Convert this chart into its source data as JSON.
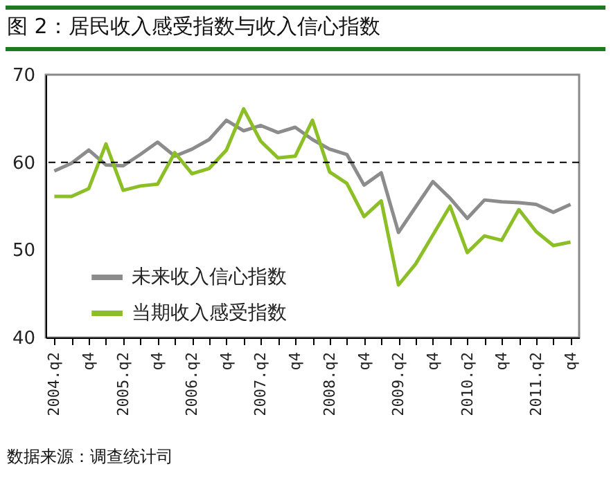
{
  "chart_data": {
    "type": "line",
    "title": "图 2：居民收入感受指数与收入信心指数",
    "categories": [
      "2004.q2",
      null,
      "q4",
      null,
      "2005.q2",
      null,
      "q4",
      null,
      "2006.q2",
      null,
      "q4",
      null,
      "2007.q2",
      null,
      "q4",
      null,
      "2008.q2",
      null,
      "q4",
      null,
      "2009.q2",
      null,
      "q4",
      null,
      "2010.q2",
      null,
      "q4",
      null,
      "2011.q2",
      null,
      "q4"
    ],
    "series": [
      {
        "name": "未来收入信心指数",
        "color": "#8c8c8c",
        "values": [
          59.0,
          59.9,
          61.4,
          59.7,
          59.6,
          60.9,
          62.3,
          60.7,
          61.5,
          62.6,
          64.8,
          63.6,
          64.2,
          63.4,
          64.0,
          62.6,
          61.5,
          60.9,
          57.4,
          58.8,
          52.0,
          54.9,
          57.8,
          55.9,
          53.6,
          55.7,
          55.5,
          55.4,
          55.2,
          54.3,
          55.2
        ]
      },
      {
        "name": "当期收入感受指数",
        "color": "#8cbf26",
        "values": [
          56.1,
          56.1,
          57.0,
          62.1,
          56.8,
          57.3,
          57.5,
          61.1,
          58.7,
          59.3,
          61.4,
          66.1,
          62.4,
          60.5,
          60.7,
          64.8,
          58.9,
          57.6,
          53.8,
          55.6,
          46.0,
          48.4,
          51.7,
          55.0,
          49.7,
          51.6,
          51.1,
          54.6,
          52.1,
          50.5,
          50.9
        ]
      }
    ],
    "ylim": [
      40,
      70
    ],
    "yticks": [
      40,
      50,
      60,
      70
    ],
    "ref_lines": [
      {
        "axis": "y",
        "value": 60,
        "color": "#000000",
        "line_style": "dashed"
      }
    ],
    "legend": "bottom left",
    "marker": "none",
    "line_style": "solid",
    "grid": false,
    "annotations": [
      "数据来源：调查统计司"
    ]
  }
}
